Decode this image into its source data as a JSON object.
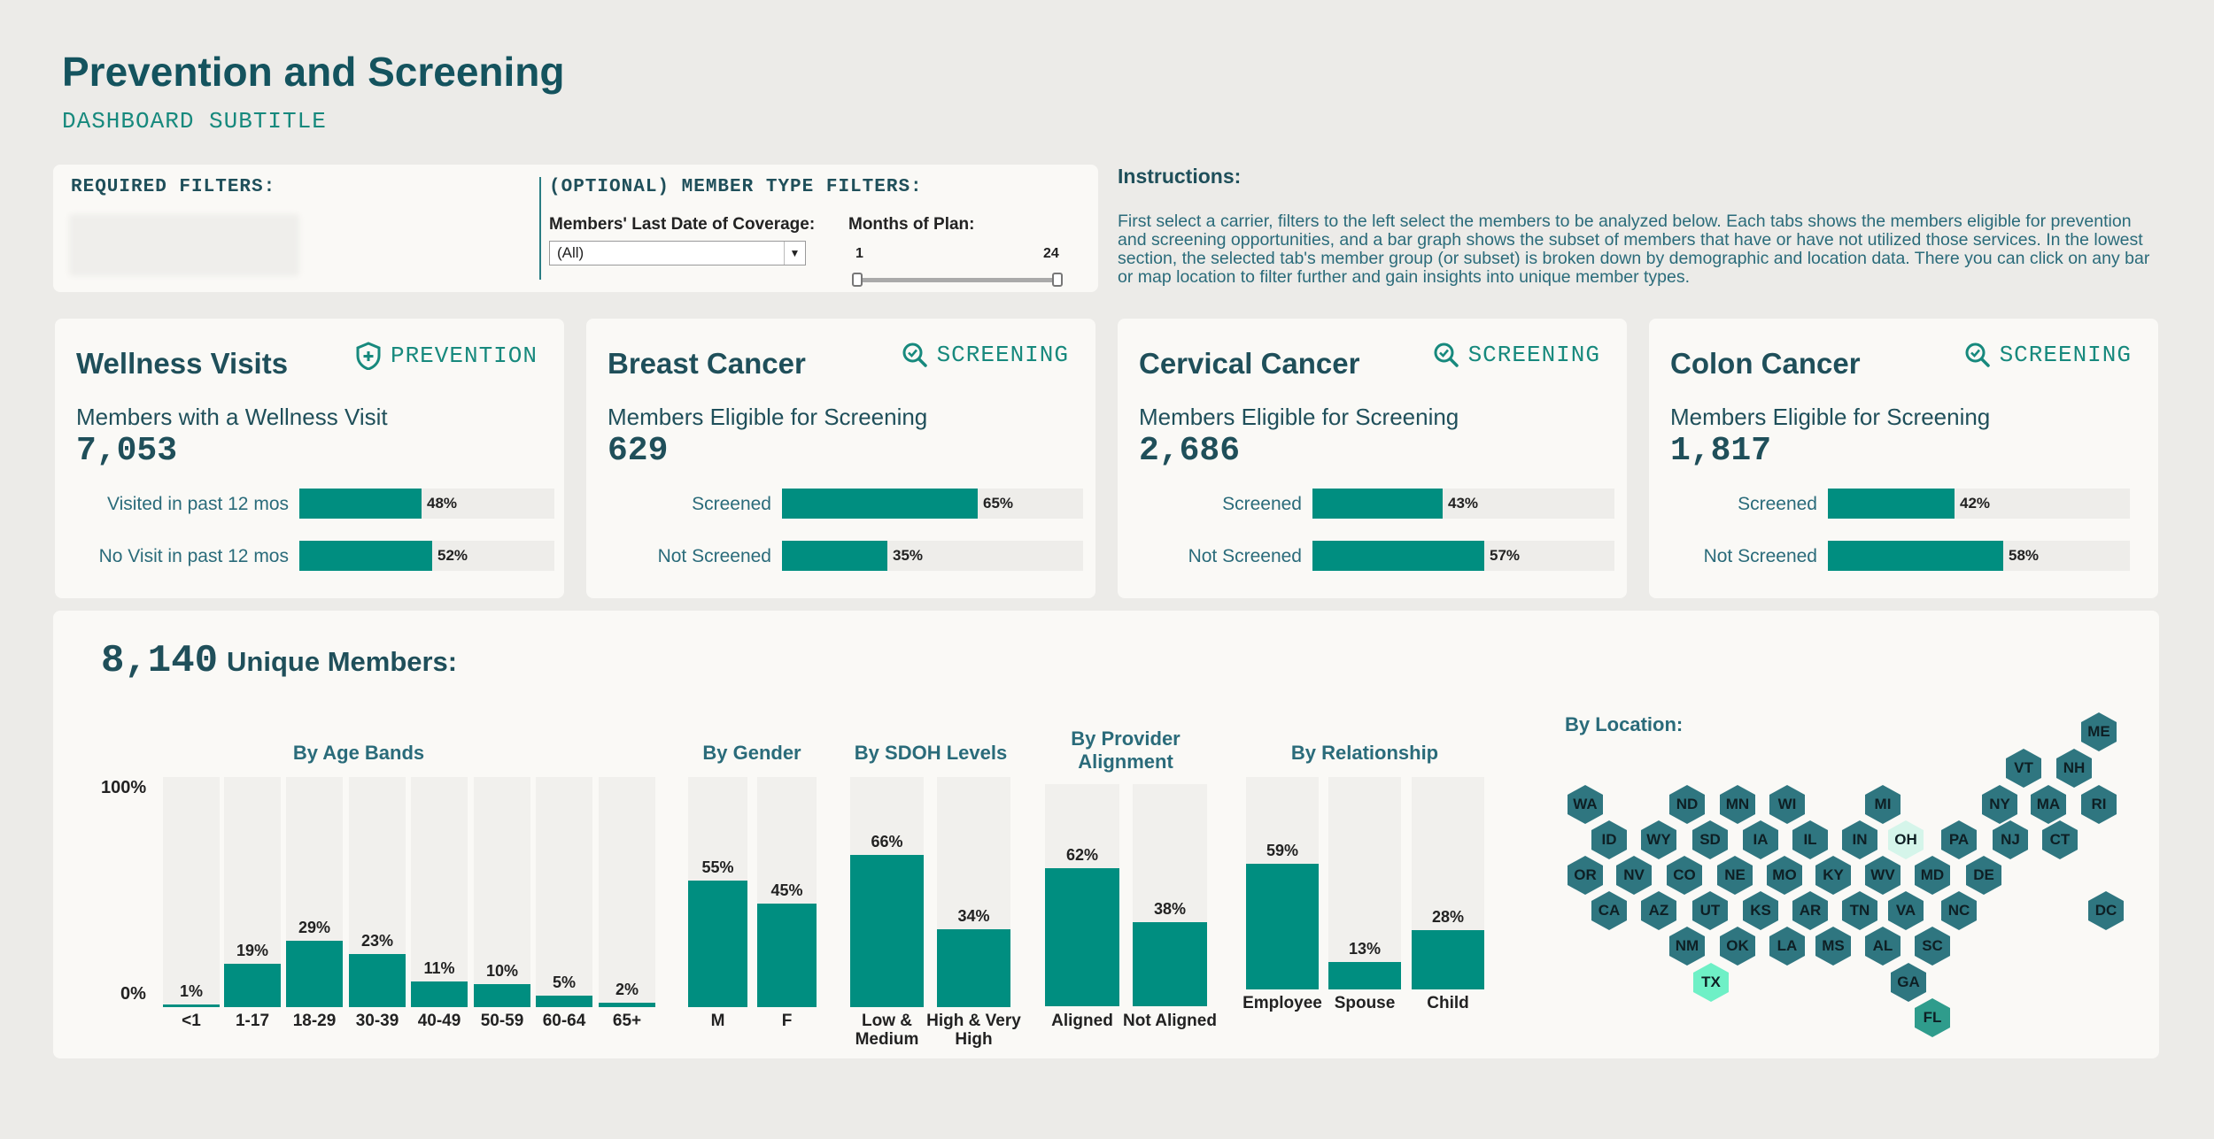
{
  "header": {
    "title": "Prevention and Screening",
    "subtitle": "DASHBOARD SUBTITLE"
  },
  "filters": {
    "required_heading": "REQUIRED FILTERS:",
    "optional_heading": "(OPTIONAL) MEMBER TYPE FILTERS:",
    "coverage_label": "Members' Last Date of Coverage:",
    "coverage_value": "(All)",
    "months_label": "Months of Plan:",
    "months_min": "1",
    "months_max": "24"
  },
  "instructions": {
    "heading": "Instructions:",
    "text": "First select a carrier, filters to the left select the members to be analyzed below. Each tabs shows the members eligible for prevention and screening opportunities, and a bar graph shows the subset of members that have or have not utilized those services. In the lowest section, the selected tab's member group (or subset) is broken down by demographic and location data. There you can click on any bar or map location to filter further and gain insights into unique member types."
  },
  "cards": [
    {
      "title": "Wellness Visits",
      "tag": "PREVENTION",
      "subtitle": "Members with a Wellness Visit",
      "count": "7,053",
      "rows": [
        {
          "label": "Visited in past 12 mos",
          "pct": 48,
          "pct_label": "48%"
        },
        {
          "label": "No Visit in past 12 mos",
          "pct": 52,
          "pct_label": "52%"
        }
      ]
    },
    {
      "title": "Breast Cancer",
      "tag": "SCREENING",
      "subtitle": "Members Eligible for Screening",
      "count": "629",
      "rows": [
        {
          "label": "Screened",
          "pct": 65,
          "pct_label": "65%"
        },
        {
          "label": "Not Screened",
          "pct": 35,
          "pct_label": "35%"
        }
      ]
    },
    {
      "title": "Cervical Cancer",
      "tag": "SCREENING",
      "subtitle": "Members Eligible for Screening",
      "count": "2,686",
      "rows": [
        {
          "label": "Screened",
          "pct": 43,
          "pct_label": "43%"
        },
        {
          "label": "Not Screened",
          "pct": 57,
          "pct_label": "57%"
        }
      ]
    },
    {
      "title": "Colon Cancer",
      "tag": "SCREENING",
      "subtitle": "Members Eligible for Screening",
      "count": "1,817",
      "rows": [
        {
          "label": "Screened",
          "pct": 42,
          "pct_label": "42%"
        },
        {
          "label": "Not Screened",
          "pct": 58,
          "pct_label": "58%"
        }
      ]
    }
  ],
  "members": {
    "count": "8,140",
    "label": "Unique Members:"
  },
  "colors": {
    "accent": "#008e80",
    "track": "#f1f0ed",
    "hex_default": "#2f7680",
    "hex_tx": "#6ef0c6",
    "hex_oh": "#d5f5ea",
    "hex_fl": "#2f9c8c"
  },
  "chart_data": [
    {
      "type": "bar",
      "title": "By Age Bands",
      "ylabel_top": "100%",
      "ylabel_bottom": "0%",
      "ylim": [
        0,
        100
      ],
      "categories": [
        "<1",
        "1-17",
        "18-29",
        "30-39",
        "40-49",
        "50-59",
        "60-64",
        "65+"
      ],
      "values": [
        1,
        19,
        29,
        23,
        11,
        10,
        5,
        2
      ],
      "value_labels": [
        "1%",
        "19%",
        "29%",
        "23%",
        "11%",
        "10%",
        "5%",
        "2%"
      ]
    },
    {
      "type": "bar",
      "title": "By Gender",
      "ylim": [
        0,
        100
      ],
      "categories": [
        "M",
        "F"
      ],
      "values": [
        55,
        45
      ],
      "value_labels": [
        "55%",
        "45%"
      ]
    },
    {
      "type": "bar",
      "title": "By SDOH Levels",
      "ylim": [
        0,
        100
      ],
      "categories": [
        "Low & Medium",
        "High & Very High"
      ],
      "values": [
        66,
        34
      ],
      "value_labels": [
        "66%",
        "34%"
      ]
    },
    {
      "type": "bar",
      "title": "By Provider Alignment",
      "ylim": [
        0,
        100
      ],
      "categories": [
        "Aligned",
        "Not Aligned"
      ],
      "values": [
        62,
        38
      ],
      "value_labels": [
        "62%",
        "38%"
      ]
    },
    {
      "type": "bar",
      "title": "By Relationship",
      "ylim": [
        0,
        100
      ],
      "categories": [
        "Employee",
        "Spouse",
        "Child"
      ],
      "values": [
        59,
        13,
        28
      ],
      "value_labels": [
        "59%",
        "13%",
        "28%"
      ]
    }
  ],
  "location": {
    "title": "By Location:",
    "states": [
      "ME",
      "VT",
      "NH",
      "WA",
      "ND",
      "MN",
      "WI",
      "MI",
      "NY",
      "MA",
      "RI",
      "ID",
      "WY",
      "SD",
      "IA",
      "IL",
      "IN",
      "OH",
      "PA",
      "NJ",
      "CT",
      "OR",
      "NV",
      "CO",
      "NE",
      "MO",
      "KY",
      "WV",
      "MD",
      "DE",
      "CA",
      "AZ",
      "UT",
      "KS",
      "AR",
      "TN",
      "VA",
      "NC",
      "DC",
      "NM",
      "OK",
      "LA",
      "MS",
      "AL",
      "SC",
      "TX",
      "GA",
      "FL"
    ]
  }
}
